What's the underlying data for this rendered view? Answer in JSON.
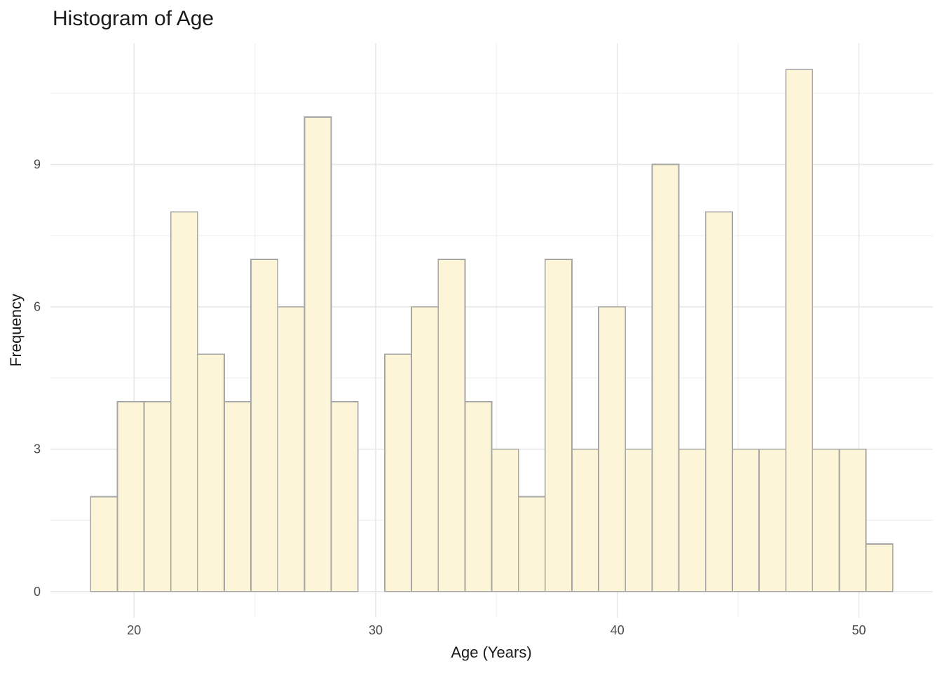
{
  "chart_data": {
    "type": "bar",
    "subtype": "histogram",
    "title": "Histogram of Age",
    "xlabel": "Age (Years)",
    "ylabel": "Frequency",
    "bin_start": 18.2,
    "bin_width": 1.10667,
    "bins": 30,
    "counts": [
      2,
      4,
      4,
      8,
      5,
      4,
      7,
      6,
      10,
      4,
      0,
      5,
      6,
      7,
      4,
      3,
      2,
      7,
      3,
      6,
      3,
      9,
      3,
      8,
      3,
      3,
      11,
      3,
      3,
      1
    ],
    "total_observations": 144,
    "xlim": [
      16.54,
      53.06
    ],
    "ylim": [
      -0.55,
      11.55
    ],
    "x_major_ticks": [
      20,
      30,
      40,
      50
    ],
    "x_minor_ticks": [
      25,
      35,
      45
    ],
    "y_major_ticks": [
      0,
      3,
      6,
      9
    ],
    "y_minor_ticks": [
      1.5,
      4.5,
      7.5,
      10.5
    ],
    "grid": "on",
    "legend_position": "none",
    "colors": {
      "bar_fill": "#FDF5D7",
      "bar_stroke": "#A6A6A6",
      "grid_major": "#E7E7E7",
      "grid_minor": "#F2F2F2",
      "tick_label": "#4D4D4D",
      "text": "#1A1A1A",
      "background": "#FFFFFF"
    }
  }
}
